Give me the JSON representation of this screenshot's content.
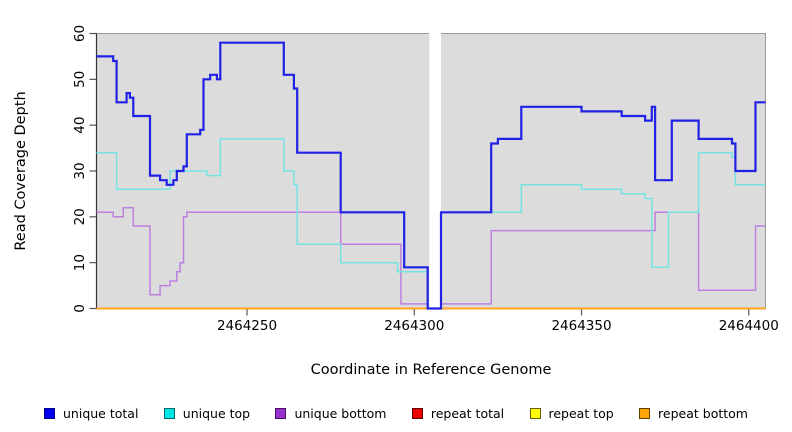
{
  "figure": {
    "x_axis_title": "Coordinate in Reference Genome",
    "y_axis_title": "Read Coverage Depth"
  },
  "chart_data": {
    "type": "line",
    "subtype": "step-after-coverage-plot",
    "title": "",
    "xlabel": "Coordinate in Reference Genome",
    "ylabel": "Read Coverage Depth",
    "x_axis": {
      "range": [
        2464205,
        2464405
      ],
      "ticks": [
        2464250,
        2464300,
        2464350,
        2464400
      ],
      "grid": false
    },
    "y_axis": {
      "range": [
        0,
        60
      ],
      "ticks": [
        0,
        10,
        20,
        30,
        40,
        50,
        60
      ],
      "grid": false
    },
    "plot_background": "#DCDCDC",
    "page_background": "#FFFFFF",
    "no_data_gap": {
      "from": 2464304.5,
      "to": 2464308
    },
    "legend_position": "bottom",
    "series": [
      {
        "name": "repeat total",
        "color": "#E02020",
        "width": 1.6,
        "points": [
          [
            2464205,
            0
          ],
          [
            2464405,
            0
          ]
        ]
      },
      {
        "name": "repeat top",
        "color": "#FFFF40",
        "width": 1.6,
        "points": [
          [
            2464205,
            0
          ],
          [
            2464405,
            0
          ]
        ]
      },
      {
        "name": "repeat bottom",
        "color": "#FFA321",
        "width": 1.9,
        "points": [
          [
            2464205,
            0
          ],
          [
            2464405,
            0
          ]
        ]
      },
      {
        "name": "unique bottom",
        "color": "#BD80DE",
        "width": 1.5,
        "points": [
          [
            2464205,
            21
          ],
          [
            2464210,
            20
          ],
          [
            2464213,
            22
          ],
          [
            2464216,
            18
          ],
          [
            2464221,
            3
          ],
          [
            2464224,
            5
          ],
          [
            2464227,
            6
          ],
          [
            2464229,
            8
          ],
          [
            2464230,
            10
          ],
          [
            2464231,
            20
          ],
          [
            2464232,
            21
          ],
          [
            2464278,
            14
          ],
          [
            2464296,
            1
          ],
          [
            2464304,
            0
          ],
          [
            2464308,
            1
          ],
          [
            2464323,
            17
          ],
          [
            2464372,
            21
          ],
          [
            2464385,
            4
          ],
          [
            2464402,
            18
          ],
          [
            2464405,
            18
          ]
        ]
      },
      {
        "name": "unique top",
        "color": "#76E3E3",
        "width": 1.5,
        "points": [
          [
            2464205,
            34
          ],
          [
            2464211,
            26
          ],
          [
            2464227,
            30
          ],
          [
            2464238,
            29
          ],
          [
            2464242,
            37
          ],
          [
            2464261,
            30
          ],
          [
            2464264,
            27
          ],
          [
            2464265,
            14
          ],
          [
            2464278,
            10
          ],
          [
            2464295,
            8
          ],
          [
            2464304,
            0
          ],
          [
            2464308,
            21
          ],
          [
            2464332,
            27
          ],
          [
            2464350,
            26
          ],
          [
            2464362,
            25
          ],
          [
            2464369,
            24
          ],
          [
            2464371,
            9
          ],
          [
            2464376,
            21
          ],
          [
            2464385,
            34
          ],
          [
            2464395,
            33
          ],
          [
            2464396,
            27
          ],
          [
            2464405,
            27
          ]
        ]
      },
      {
        "name": "unique total",
        "color": "#2121E5",
        "width": 2.2,
        "points": [
          [
            2464205,
            55
          ],
          [
            2464210,
            54
          ],
          [
            2464211,
            45
          ],
          [
            2464214,
            47
          ],
          [
            2464215,
            46
          ],
          [
            2464216,
            42
          ],
          [
            2464221,
            29
          ],
          [
            2464224,
            28
          ],
          [
            2464226,
            27
          ],
          [
            2464228,
            28
          ],
          [
            2464229,
            30
          ],
          [
            2464231,
            31
          ],
          [
            2464232,
            38
          ],
          [
            2464236,
            39
          ],
          [
            2464237,
            50
          ],
          [
            2464239,
            51
          ],
          [
            2464241,
            50
          ],
          [
            2464242,
            58
          ],
          [
            2464261,
            51
          ],
          [
            2464264,
            48
          ],
          [
            2464265,
            34
          ],
          [
            2464278,
            21
          ],
          [
            2464297,
            9
          ],
          [
            2464304,
            0
          ],
          [
            2464308,
            21
          ],
          [
            2464323,
            36
          ],
          [
            2464325,
            37
          ],
          [
            2464332,
            44
          ],
          [
            2464350,
            43
          ],
          [
            2464362,
            42
          ],
          [
            2464369,
            41
          ],
          [
            2464371,
            44
          ],
          [
            2464372,
            28
          ],
          [
            2464377,
            41
          ],
          [
            2464385,
            37
          ],
          [
            2464395,
            36
          ],
          [
            2464396,
            30
          ],
          [
            2464402,
            45
          ],
          [
            2464405,
            45
          ]
        ]
      }
    ]
  },
  "legend": {
    "items": [
      {
        "label": "unique total",
        "swatch_color": "#0000EE",
        "border_color": "#000080"
      },
      {
        "label": "unique top",
        "swatch_color": "#00E6E6",
        "border_color": "#006868"
      },
      {
        "label": "unique bottom",
        "swatch_color": "#9932CC",
        "border_color": "#4B0D66"
      },
      {
        "label": "repeat total",
        "swatch_color": "#EE0000",
        "border_color": "#600000"
      },
      {
        "label": "repeat top",
        "swatch_color": "#FFFF00",
        "border_color": "#606000"
      },
      {
        "label": "repeat bottom",
        "swatch_color": "#FFA500",
        "border_color": "#5E3D00"
      }
    ]
  },
  "axis_style": {
    "tick_color": "#555555",
    "box_color": "#999999",
    "text_color": "#000000"
  }
}
